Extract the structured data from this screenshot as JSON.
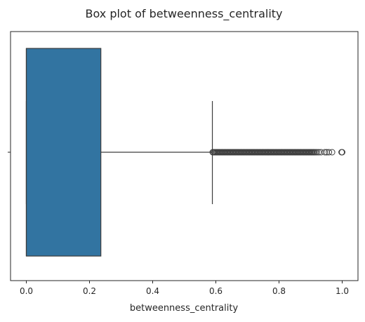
{
  "chart_data": {
    "type": "box",
    "title": "Box plot of betweenness_centrality",
    "xlabel": "betweenness_centrality",
    "ylabel": "",
    "xlim": [
      -0.05,
      1.05
    ],
    "xticks": [
      0.0,
      0.2,
      0.4,
      0.6,
      0.8,
      1.0
    ],
    "xtick_labels": [
      "0.0",
      "0.2",
      "0.4",
      "0.6",
      "0.8",
      "1.0"
    ],
    "grid": false,
    "box": {
      "min_whisker": 0.0,
      "q1": 0.0,
      "median": 0.0,
      "q3": 0.236,
      "max_whisker": 0.589,
      "fill_color": "#3274a1",
      "edge_color": "#3d3d3d"
    },
    "outliers": [
      0.59,
      0.593,
      0.596,
      0.599,
      0.602,
      0.605,
      0.608,
      0.611,
      0.614,
      0.617,
      0.62,
      0.623,
      0.626,
      0.629,
      0.632,
      0.635,
      0.638,
      0.641,
      0.644,
      0.647,
      0.65,
      0.653,
      0.656,
      0.659,
      0.662,
      0.665,
      0.668,
      0.671,
      0.674,
      0.677,
      0.68,
      0.683,
      0.686,
      0.689,
      0.692,
      0.695,
      0.698,
      0.701,
      0.704,
      0.707,
      0.71,
      0.713,
      0.716,
      0.719,
      0.722,
      0.725,
      0.728,
      0.731,
      0.734,
      0.737,
      0.74,
      0.743,
      0.746,
      0.749,
      0.752,
      0.755,
      0.758,
      0.761,
      0.764,
      0.767,
      0.77,
      0.773,
      0.776,
      0.779,
      0.782,
      0.785,
      0.788,
      0.791,
      0.794,
      0.797,
      0.8,
      0.803,
      0.806,
      0.809,
      0.812,
      0.815,
      0.818,
      0.821,
      0.824,
      0.827,
      0.83,
      0.833,
      0.836,
      0.839,
      0.842,
      0.845,
      0.848,
      0.851,
      0.854,
      0.857,
      0.86,
      0.863,
      0.866,
      0.869,
      0.872,
      0.875,
      0.878,
      0.881,
      0.884,
      0.887,
      0.89,
      0.893,
      0.896,
      0.899,
      0.902,
      0.905,
      0.908,
      0.911,
      0.915,
      0.92,
      0.926,
      0.933,
      0.945,
      0.951,
      0.958,
      0.968,
      0.998,
      1.0
    ]
  }
}
